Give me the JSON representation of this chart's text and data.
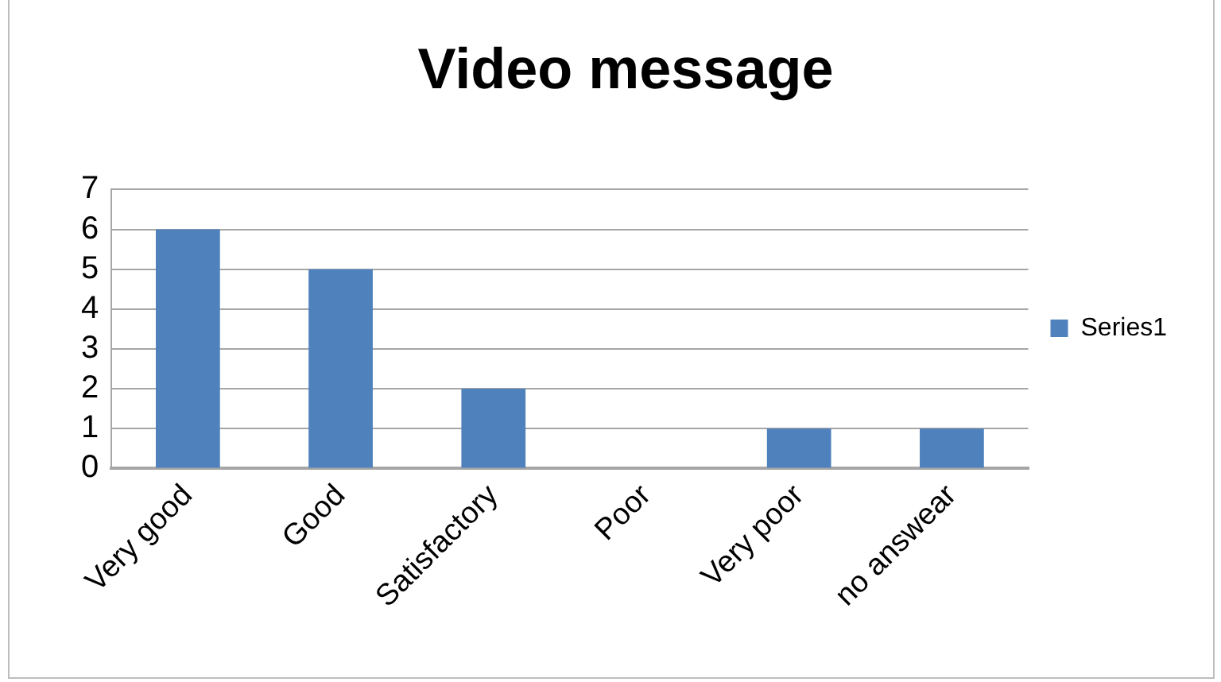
{
  "chart_data": {
    "type": "bar",
    "title": "Video message",
    "categories": [
      "Very good",
      "Good",
      "Satisfactory",
      "Poor",
      "Very poor",
      "no answear"
    ],
    "series": [
      {
        "name": "Series1",
        "color": "#4f81bd",
        "values": [
          6,
          5,
          2,
          0,
          1,
          1
        ]
      }
    ],
    "ylim": [
      0,
      7
    ],
    "yticks": [
      0,
      1,
      2,
      3,
      4,
      5,
      6,
      7
    ],
    "grid": "y",
    "legend": "right"
  }
}
